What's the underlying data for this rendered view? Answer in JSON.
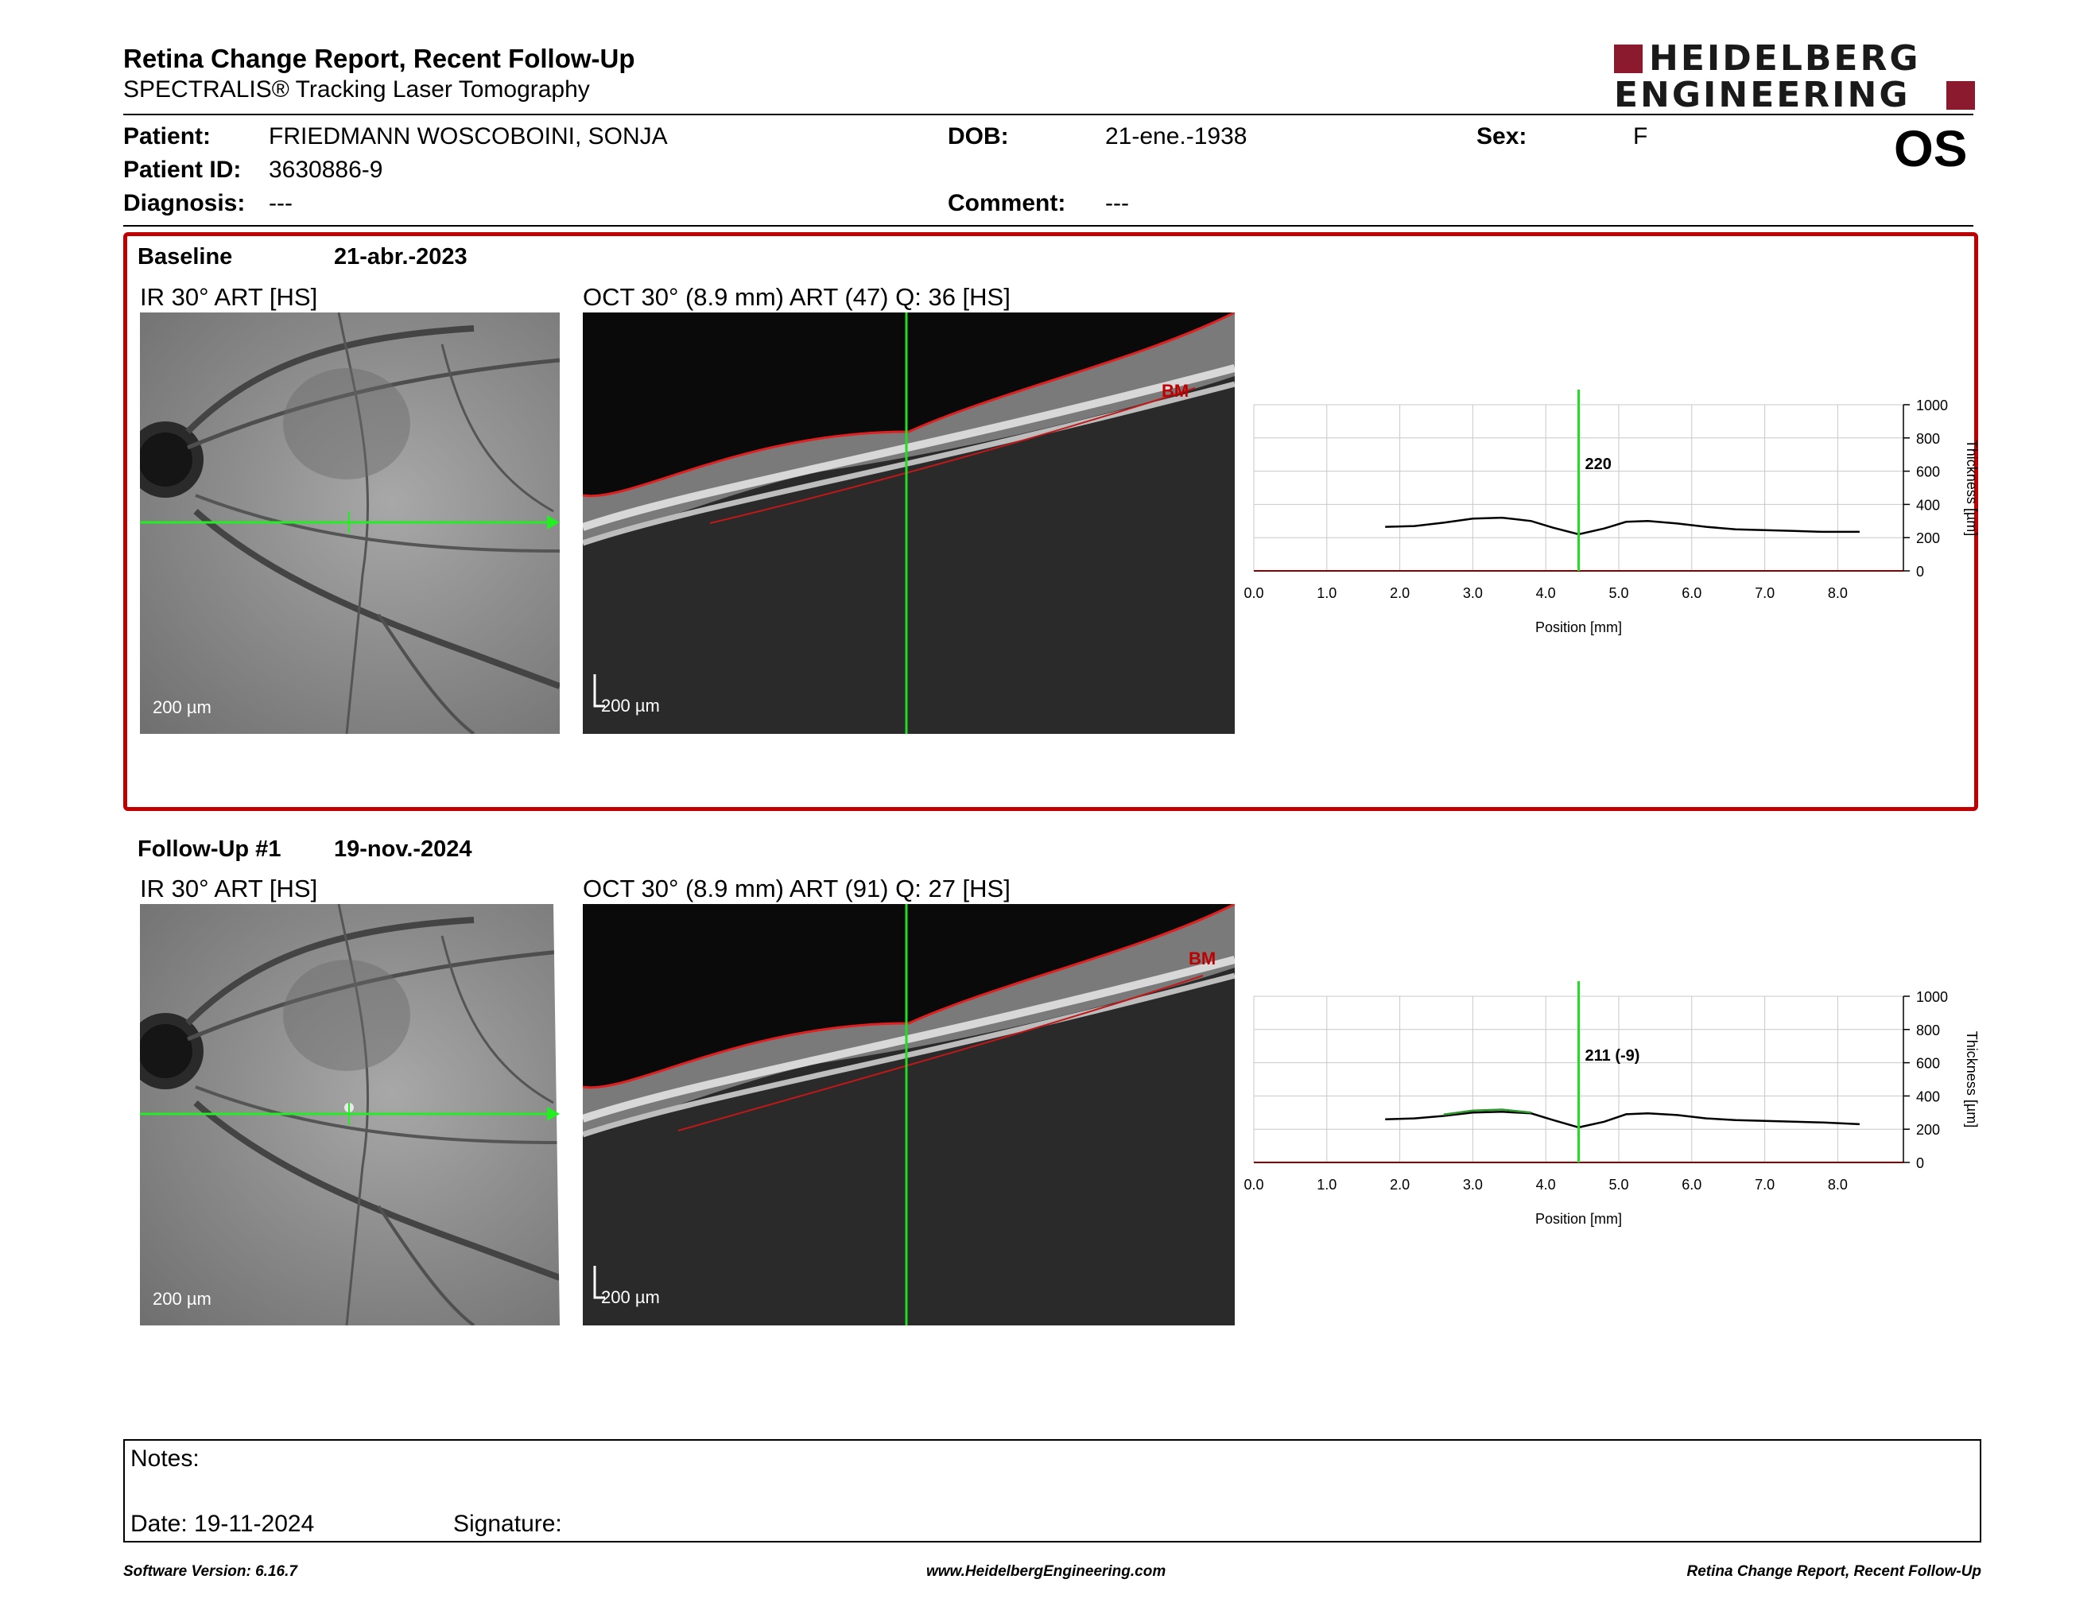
{
  "header": {
    "title": "Retina Change Report, Recent Follow-Up",
    "subtitle": "SPECTRALIS® Tracking Laser Tomography",
    "logo_line1": "HEIDELBERG",
    "logo_line2": "ENGINEERING",
    "eye": "OS"
  },
  "patient": {
    "patient_label": "Patient:",
    "patient_value": "FRIEDMANN WOSCOBOINI,  SONJA",
    "id_label": "Patient ID:",
    "id_value": "3630886-9",
    "diagnosis_label": "Diagnosis:",
    "diagnosis_value": "---",
    "dob_label": "DOB:",
    "dob_value": "21-ene.-1938",
    "comment_label": "Comment:",
    "comment_value": "---",
    "sex_label": "Sex:",
    "sex_value": "F"
  },
  "baseline": {
    "name": "Baseline",
    "date": "21-abr.-2023",
    "ir_title": "IR 30° ART [HS]",
    "oct_title": "OCT 30° (8.9 mm) ART (47) Q: 36 [HS]",
    "scale": "200 µm",
    "bm_label": "BM",
    "highlight_color": "#c00000"
  },
  "followup": {
    "name": "Follow-Up #1",
    "date": "19-nov.-2024",
    "ir_title": "IR 30° ART [HS]",
    "oct_title": "OCT 30° (8.9 mm) ART (91) Q: 27 [HS]",
    "scale": "200 µm",
    "bm_label": "BM"
  },
  "chart_data": [
    {
      "type": "line",
      "ylabel": "Thickness [µm]",
      "xlabel": "Position [mm]",
      "xlim": [
        0,
        8.9
      ],
      "ylim": [
        0,
        1000
      ],
      "xticks": [
        "0.0",
        "1.0",
        "2.0",
        "3.0",
        "4.0",
        "5.0",
        "6.0",
        "7.0",
        "8.0"
      ],
      "yticks": [
        "0",
        "200",
        "400",
        "600",
        "800",
        "1000"
      ],
      "grid": true,
      "cursor_x": 4.45,
      "cursor_label": "220",
      "series": [
        {
          "color": "#000000",
          "x": [
            1.8,
            2.2,
            2.6,
            3.0,
            3.4,
            3.8,
            4.1,
            4.45,
            4.8,
            5.1,
            5.4,
            5.8,
            6.2,
            6.6,
            7.0,
            7.4,
            7.8,
            8.3
          ],
          "y": [
            265,
            270,
            290,
            315,
            320,
            300,
            260,
            220,
            255,
            295,
            300,
            285,
            265,
            250,
            245,
            240,
            235,
            235
          ]
        }
      ]
    },
    {
      "type": "line",
      "ylabel": "Thickness [µm]",
      "xlabel": "Position [mm]",
      "xlim": [
        0,
        8.9
      ],
      "ylim": [
        0,
        1000
      ],
      "xticks": [
        "0.0",
        "1.0",
        "2.0",
        "3.0",
        "4.0",
        "5.0",
        "6.0",
        "7.0",
        "8.0"
      ],
      "yticks": [
        "0",
        "200",
        "400",
        "600",
        "800",
        "1000"
      ],
      "grid": true,
      "cursor_x": 4.45,
      "cursor_label": "211 (-9)",
      "series": [
        {
          "color": "#000000",
          "x": [
            1.8,
            2.2,
            2.6,
            3.0,
            3.4,
            3.8,
            4.1,
            4.45,
            4.8,
            5.1,
            5.4,
            5.8,
            6.2,
            6.6,
            7.0,
            7.4,
            7.8,
            8.3
          ],
          "y": [
            260,
            265,
            280,
            300,
            305,
            295,
            255,
            211,
            245,
            290,
            295,
            285,
            265,
            255,
            250,
            245,
            240,
            230
          ]
        },
        {
          "color": "#2e9a2e",
          "x": [
            2.6,
            3.0,
            3.4,
            3.8
          ],
          "y": [
            288,
            312,
            318,
            300
          ]
        }
      ]
    }
  ],
  "notes": {
    "notes_label": "Notes:",
    "date_label": "Date: 19-11-2024",
    "signature_label": "Signature:"
  },
  "footer": {
    "software": "Software Version: 6.16.7",
    "website": "www.HeidelbergEngineering.com",
    "report_name": "Retina Change Report, Recent Follow-Up"
  }
}
